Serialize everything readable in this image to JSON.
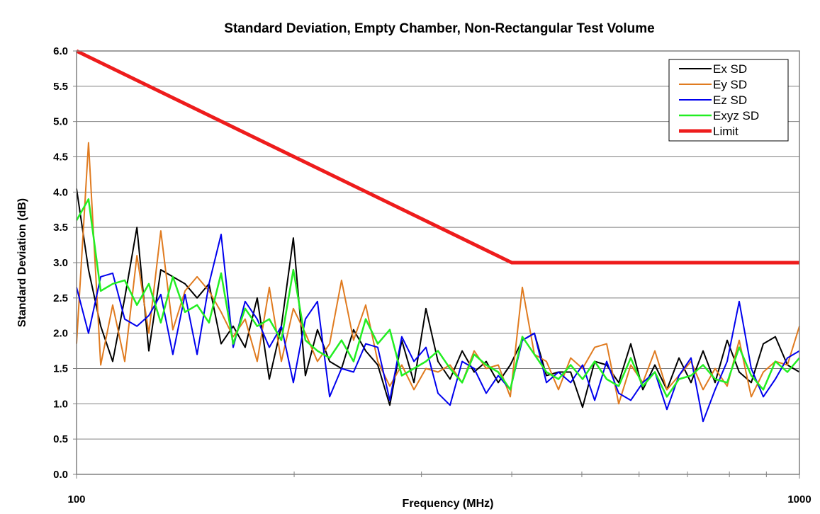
{
  "chart_data": {
    "type": "line",
    "title": "Standard Deviation, Empty Chamber, Non-Rectangular Test Volume",
    "xlabel": "Frequency (MHz)",
    "ylabel": "Standard Deviation (dB)",
    "xscale": "log",
    "xlim": [
      100,
      1000
    ],
    "xticks": [
      100,
      1000
    ],
    "xminorticks": [
      200,
      300,
      400,
      500,
      600,
      700,
      800,
      900
    ],
    "ylim": [
      0,
      6
    ],
    "yticks": [
      {
        "value": 0,
        "label": "0.0"
      },
      {
        "value": 0.5,
        "label": "0.5"
      },
      {
        "value": 1,
        "label": "1.0"
      },
      {
        "value": 1.5,
        "label": "1.5"
      },
      {
        "value": 2,
        "label": "2.0"
      },
      {
        "value": 2.5,
        "label": "2.5"
      },
      {
        "value": 3,
        "label": "3.0"
      },
      {
        "value": 3.5,
        "label": "3.5"
      },
      {
        "value": 4,
        "label": "4.0"
      },
      {
        "value": 4.5,
        "label": "4.5"
      },
      {
        "value": 5,
        "label": "5.0"
      },
      {
        "value": 5.5,
        "label": "5.5"
      },
      {
        "value": 6,
        "label": "6.0"
      }
    ],
    "grid": true,
    "legend": "upper right",
    "x": [
      100,
      103.9,
      108,
      112.2,
      116.6,
      121.2,
      125.9,
      130.8,
      135.9,
      141.3,
      146.8,
      152.5,
      158.5,
      164.7,
      171.1,
      177.8,
      184.8,
      192,
      199.5,
      207.3,
      215.4,
      223.9,
      232.6,
      241.7,
      251.2,
      261,
      271.2,
      281.8,
      292.9,
      304.3,
      316.2,
      328.6,
      341.5,
      354.8,
      368.7,
      383.1,
      398.1,
      413.7,
      429.9,
      446.7,
      464.2,
      482.5,
      501.2,
      520.9,
      541.2,
      562.3,
      584.3,
      607.2,
      631,
      655.7,
      681.3,
      708,
      735.7,
      764.5,
      794.3,
      825.4,
      857.7,
      891.3,
      926.2,
      962.4,
      1000
    ],
    "series": [
      {
        "name": "Ex SD",
        "color": "#000000",
        "width": 2,
        "values": [
          4.05,
          2.9,
          2.1,
          1.6,
          2.5,
          3.5,
          1.75,
          2.9,
          2.8,
          2.7,
          2.5,
          2.7,
          1.85,
          2.1,
          1.8,
          2.5,
          1.35,
          2.1,
          3.35,
          1.4,
          2.05,
          1.6,
          1.5,
          2.05,
          1.75,
          1.55,
          0.98,
          1.9,
          1.3,
          2.35,
          1.6,
          1.35,
          1.75,
          1.45,
          1.6,
          1.3,
          1.55,
          1.9,
          2.0,
          1.4,
          1.45,
          1.45,
          0.95,
          1.6,
          1.55,
          1.3,
          1.85,
          1.2,
          1.55,
          1.2,
          1.65,
          1.3,
          1.75,
          1.3,
          1.9,
          1.45,
          1.3,
          1.85,
          1.95,
          1.55,
          1.45
        ]
      },
      {
        "name": "Ey SD",
        "color": "#e07b20",
        "width": 2,
        "values": [
          1.85,
          4.7,
          1.55,
          2.4,
          1.6,
          3.1,
          2.0,
          3.45,
          2.05,
          2.6,
          2.8,
          2.6,
          2.3,
          1.95,
          2.2,
          1.6,
          2.65,
          1.6,
          2.35,
          2.0,
          1.6,
          1.85,
          2.75,
          1.9,
          2.4,
          1.6,
          1.25,
          1.55,
          1.2,
          1.5,
          1.45,
          1.55,
          1.3,
          1.75,
          1.5,
          1.55,
          1.1,
          2.65,
          1.7,
          1.6,
          1.2,
          1.65,
          1.5,
          1.8,
          1.85,
          1.0,
          1.55,
          1.3,
          1.75,
          1.2,
          1.4,
          1.6,
          1.2,
          1.5,
          1.25,
          1.9,
          1.1,
          1.45,
          1.6,
          1.55,
          2.1
        ]
      },
      {
        "name": "Ez SD",
        "color": "#0000ee",
        "width": 2,
        "values": [
          2.65,
          2.0,
          2.8,
          2.85,
          2.2,
          2.1,
          2.25,
          2.55,
          1.7,
          2.55,
          1.7,
          2.7,
          3.4,
          1.8,
          2.45,
          2.2,
          1.8,
          2.1,
          1.3,
          2.2,
          2.45,
          1.1,
          1.5,
          1.45,
          1.85,
          1.8,
          1.05,
          1.95,
          1.6,
          1.8,
          1.15,
          0.98,
          1.6,
          1.5,
          1.15,
          1.4,
          1.2,
          1.9,
          2.0,
          1.3,
          1.45,
          1.3,
          1.55,
          1.05,
          1.6,
          1.15,
          1.05,
          1.3,
          1.45,
          0.92,
          1.4,
          1.65,
          0.75,
          1.2,
          1.6,
          2.45,
          1.5,
          1.1,
          1.35,
          1.65,
          1.75
        ]
      },
      {
        "name": "Exyz SD",
        "color": "#22ee22",
        "width": 2.5,
        "values": [
          3.6,
          3.9,
          2.6,
          2.7,
          2.75,
          2.4,
          2.7,
          2.15,
          2.8,
          2.3,
          2.4,
          2.15,
          2.85,
          1.85,
          2.35,
          2.1,
          2.2,
          1.9,
          2.9,
          1.9,
          1.75,
          1.65,
          1.9,
          1.6,
          2.2,
          1.85,
          2.05,
          1.4,
          1.5,
          1.6,
          1.75,
          1.5,
          1.3,
          1.7,
          1.55,
          1.45,
          1.2,
          1.95,
          1.7,
          1.45,
          1.35,
          1.55,
          1.35,
          1.6,
          1.35,
          1.25,
          1.65,
          1.25,
          1.45,
          1.1,
          1.35,
          1.4,
          1.55,
          1.35,
          1.3,
          1.8,
          1.4,
          1.2,
          1.6,
          1.45,
          1.65
        ]
      },
      {
        "name": "Limit",
        "color": "#ee1c1c",
        "width": 5,
        "x": [
          100,
          400,
          1000
        ],
        "values": [
          6,
          3,
          3
        ]
      }
    ]
  }
}
